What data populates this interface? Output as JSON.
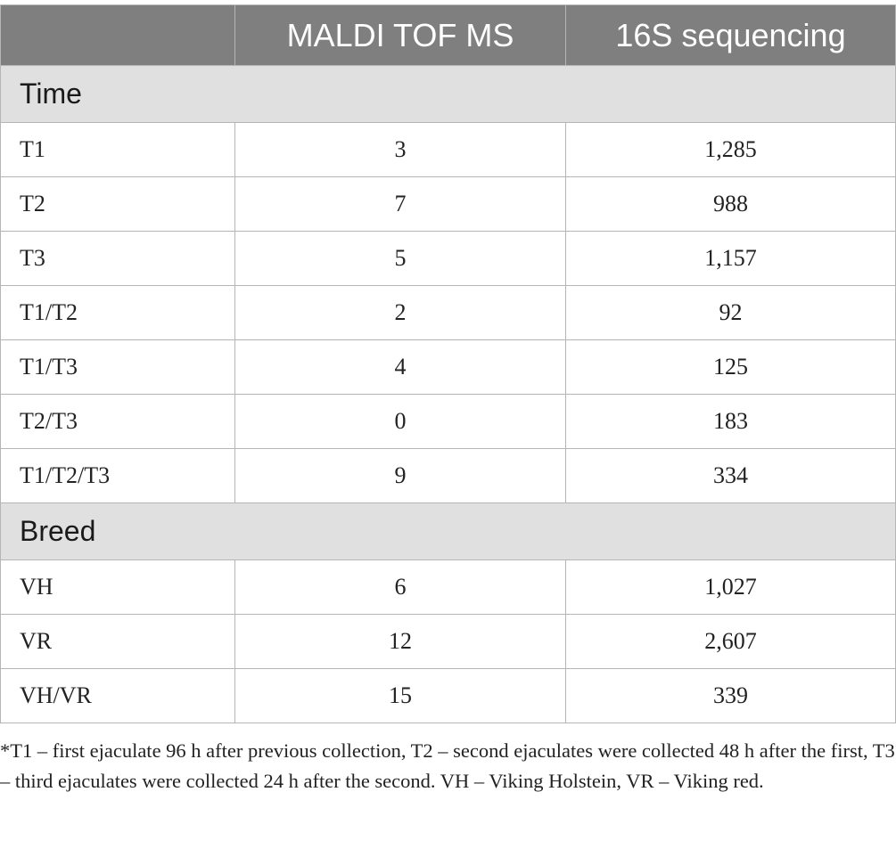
{
  "table": {
    "headers": [
      "",
      "MALDI TOF MS",
      "16S sequencing"
    ],
    "sections": [
      {
        "title": "Time",
        "rows": [
          {
            "label": "T1",
            "maldi": "3",
            "seq16s": "1,285"
          },
          {
            "label": "T2",
            "maldi": "7",
            "seq16s": "988"
          },
          {
            "label": "T3",
            "maldi": "5",
            "seq16s": "1,157"
          },
          {
            "label": "T1/T2",
            "maldi": "2",
            "seq16s": "92"
          },
          {
            "label": "T1/T3",
            "maldi": "4",
            "seq16s": "125"
          },
          {
            "label": "T2/T3",
            "maldi": "0",
            "seq16s": "183"
          },
          {
            "label": "T1/T2/T3",
            "maldi": "9",
            "seq16s": "334"
          }
        ]
      },
      {
        "title": "Breed",
        "rows": [
          {
            "label": "VH",
            "maldi": "6",
            "seq16s": "1,027"
          },
          {
            "label": "VR",
            "maldi": "12",
            "seq16s": "2,607"
          },
          {
            "label": "VH/VR",
            "maldi": "15",
            "seq16s": "339"
          }
        ]
      }
    ]
  },
  "footnote": "*T1 – first ejaculate 96 h after previous collection, T2 – second ejaculates were collected 48 h after the first, T3 – third ejaculates were collected 24 h after the second. VH – Viking Holstein, VR – Viking red.",
  "colors": {
    "header_bg": "#7f7f7f",
    "header_text": "#ffffff",
    "section_bg": "#e0e0e0",
    "border": "#b5b5b5"
  }
}
